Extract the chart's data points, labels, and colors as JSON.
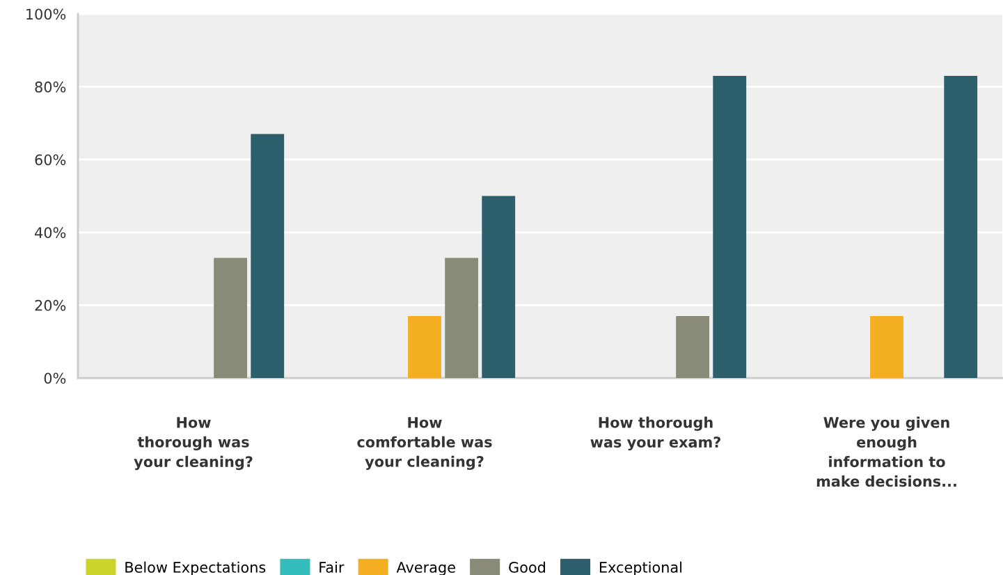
{
  "chart_data": {
    "type": "bar",
    "categories": [
      "How\nthorough was\nyour cleaning?",
      "How\ncomfortable was\nyour cleaning?",
      "How thorough\nwas your exam?",
      "Were you given\nenough\ninformation to\nmake decisions..."
    ],
    "series": [
      {
        "name": "Below Expectations",
        "color": "#cbd42b",
        "values": [
          0,
          0,
          0,
          0
        ]
      },
      {
        "name": "Fair",
        "color": "#33bdbd",
        "values": [
          0,
          0,
          0,
          0
        ]
      },
      {
        "name": "Average",
        "color": "#f4ae22",
        "values": [
          0,
          17,
          0,
          17
        ]
      },
      {
        "name": "Good",
        "color": "#8a8a78",
        "values": [
          33,
          33,
          17,
          0
        ]
      },
      {
        "name": "Exceptional",
        "color": "#2d5e6b",
        "values": [
          67,
          50,
          83,
          83
        ]
      }
    ],
    "ylim": [
      0,
      100
    ],
    "yticks": [
      {
        "value": 0,
        "label": "0%"
      },
      {
        "value": 20,
        "label": "20%"
      },
      {
        "value": 40,
        "label": "40%"
      },
      {
        "value": 60,
        "label": "60%"
      },
      {
        "value": 80,
        "label": "80%"
      },
      {
        "value": 100,
        "label": "100%"
      }
    ],
    "grid": "y",
    "legend": "bottom"
  }
}
